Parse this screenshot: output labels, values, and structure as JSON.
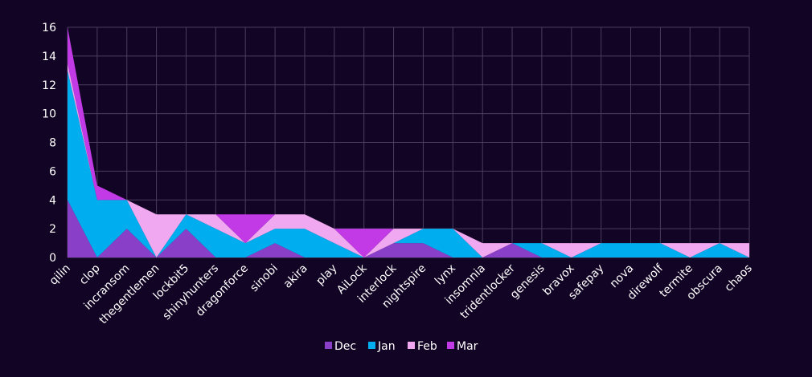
{
  "chart_data": {
    "type": "area",
    "stacked": true,
    "categories": [
      "qilin",
      "clop",
      "incransom",
      "thegentlemen",
      "lockbit5",
      "shinyhunters",
      "dragonforce",
      "sinobi",
      "akira",
      "play",
      "AiLock",
      "interlock",
      "nightspire",
      "lynx",
      "insomnia",
      "tridentlocker",
      "genesis",
      "bravox",
      "safepay",
      "nova",
      "direwolf",
      "termite",
      "obscura",
      "chaos"
    ],
    "series": [
      {
        "name": "Dec",
        "color": "#8a3fc9",
        "values": [
          4,
          0,
          2,
          0,
          2,
          0,
          0,
          1,
          0,
          0,
          0,
          1,
          1,
          0,
          0,
          1,
          0,
          0,
          0,
          0,
          0,
          0,
          0,
          0
        ]
      },
      {
        "name": "Jan",
        "color": "#00aeef",
        "values": [
          9,
          4,
          2,
          0,
          1,
          2,
          1,
          1,
          2,
          1,
          0,
          0,
          1,
          2,
          0,
          0,
          1,
          0,
          1,
          1,
          1,
          0,
          1,
          0
        ]
      },
      {
        "name": "Feb",
        "color": "#f0a8f0",
        "values": [
          0.5,
          0,
          0,
          3,
          0,
          1,
          0,
          1,
          1,
          1,
          0,
          1,
          0,
          0,
          1,
          0,
          0,
          1,
          0,
          0,
          0,
          1,
          0,
          1
        ]
      },
      {
        "name": "Mar",
        "color": "#c23ae6",
        "values": [
          2.5,
          1,
          0,
          0,
          0,
          0,
          2,
          0,
          0,
          0,
          2,
          0,
          0,
          0,
          0,
          0,
          0,
          0,
          0,
          0,
          0,
          0,
          0,
          0
        ]
      }
    ],
    "ylim": [
      0,
      16
    ],
    "yticks": [
      0,
      2,
      4,
      6,
      8,
      10,
      12,
      14,
      16
    ],
    "grid": true,
    "legend_position": "bottom",
    "xlabel": "",
    "ylabel": "",
    "title": ""
  }
}
